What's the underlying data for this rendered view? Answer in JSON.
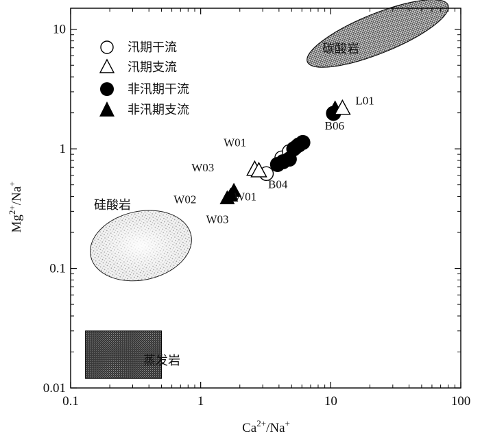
{
  "chart_data": {
    "type": "scatter",
    "x_scale": "log",
    "y_scale": "log",
    "xlim": [
      0.1,
      100
    ],
    "ylim": [
      0.01,
      15
    ],
    "xlabel": {
      "base": "Ca",
      "sup": "2+",
      "mid": "/Na",
      "sup2": "+"
    },
    "ylabel": {
      "base": "Mg",
      "sup": "2+",
      "mid": "/Na",
      "sup2": "+"
    },
    "x_ticks": [
      {
        "value": 0.1,
        "label": "0.1"
      },
      {
        "value": 1,
        "label": "1"
      },
      {
        "value": 10,
        "label": "10"
      },
      {
        "value": 100,
        "label": "100"
      }
    ],
    "y_ticks": [
      {
        "value": 0.01,
        "label": "0.01"
      },
      {
        "value": 0.1,
        "label": "0.1"
      },
      {
        "value": 1,
        "label": "1"
      },
      {
        "value": 10,
        "label": "10"
      }
    ],
    "grid": false,
    "legend_position": "top-left",
    "legend": [
      {
        "name": "汛期干流",
        "marker": "open-circle"
      },
      {
        "name": "汛期支流",
        "marker": "open-triangle"
      },
      {
        "name": "非汛期干流",
        "marker": "filled-circle"
      },
      {
        "name": "非汛期支流",
        "marker": "filled-triangle"
      }
    ],
    "regions": [
      {
        "name": "碳酸岩",
        "shape": "ellipse",
        "x_range": [
          6,
          88
        ],
        "y_range": [
          6.3,
          13.5
        ],
        "fill": "dense-dots"
      },
      {
        "name": "硅酸岩",
        "shape": "ellipse",
        "x_range": [
          0.14,
          0.86
        ],
        "y_range": [
          0.08,
          0.3
        ],
        "fill": "light-dots"
      },
      {
        "name": "蒸发岩",
        "shape": "rect",
        "x_range": [
          0.13,
          0.5
        ],
        "y_range": [
          0.012,
          0.03
        ],
        "fill": "dark-stipple"
      }
    ],
    "series": [
      {
        "name": "汛期干流",
        "marker": "open-circle",
        "points": [
          {
            "x": 3.2,
            "y": 0.62
          },
          {
            "x": 4.2,
            "y": 0.84
          },
          {
            "x": 4.8,
            "y": 0.95
          },
          {
            "x": 5.5,
            "y": 1.05
          }
        ]
      },
      {
        "name": "汛期支流",
        "marker": "open-triangle",
        "points": [
          {
            "x": 2.6,
            "y": 0.68
          },
          {
            "x": 2.8,
            "y": 0.66
          },
          {
            "x": 12.3,
            "y": 2.2
          }
        ]
      },
      {
        "name": "非汛期干流",
        "marker": "filled-circle",
        "points": [
          {
            "x": 3.9,
            "y": 0.74
          },
          {
            "x": 4.3,
            "y": 0.78
          },
          {
            "x": 4.8,
            "y": 0.82
          },
          {
            "x": 5.2,
            "y": 1.0
          },
          {
            "x": 5.7,
            "y": 1.08
          },
          {
            "x": 6.1,
            "y": 1.13
          },
          {
            "x": 10.5,
            "y": 1.98
          }
        ]
      },
      {
        "name": "非汛期支流",
        "marker": "filled-triangle",
        "points": [
          {
            "x": 1.6,
            "y": 0.39
          },
          {
            "x": 1.7,
            "y": 0.41
          },
          {
            "x": 1.8,
            "y": 0.45
          },
          {
            "x": 10.8,
            "y": 2.2
          }
        ]
      }
    ],
    "annotations": [
      {
        "text": "L01",
        "x": 15.5,
        "y": 2.35
      },
      {
        "text": "B06",
        "x": 9.0,
        "y": 1.45
      },
      {
        "text": "W01",
        "x": 1.5,
        "y": 1.05
      },
      {
        "text": "W03",
        "x": 0.85,
        "y": 0.65
      },
      {
        "text": "B04",
        "x": 3.3,
        "y": 0.47
      },
      {
        "text": "W02",
        "x": 0.62,
        "y": 0.35
      },
      {
        "text": "W01",
        "x": 1.8,
        "y": 0.37
      },
      {
        "text": "W03",
        "x": 1.1,
        "y": 0.24
      }
    ]
  }
}
